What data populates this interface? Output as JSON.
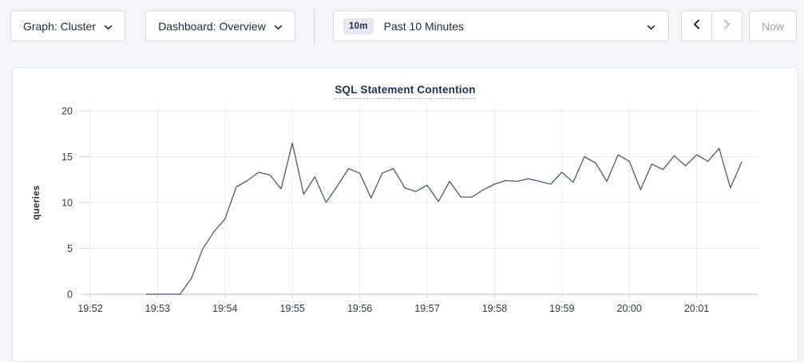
{
  "toolbar": {
    "graph_dropdown": {
      "label": "Graph: Cluster"
    },
    "dashboard_dropdown": {
      "label": "Dashboard: Overview"
    },
    "time_range_dropdown": {
      "badge": "10m",
      "label": "Past 10 Minutes"
    },
    "prev_button": {
      "enabled": true
    },
    "next_button": {
      "enabled": false
    },
    "now_button": {
      "label": "Now",
      "enabled": false
    }
  },
  "chart": {
    "title": "SQL Statement Contention",
    "ylabel": "queries"
  },
  "chart_data": {
    "type": "line",
    "title": "SQL Statement Contention",
    "xlabel": "",
    "ylabel": "queries",
    "ylim": [
      0,
      20
    ],
    "y_ticks": [
      0,
      5,
      10,
      15,
      20
    ],
    "x_ticks": [
      "19:52",
      "19:53",
      "19:54",
      "19:55",
      "19:56",
      "19:57",
      "19:58",
      "19:59",
      "20:00",
      "20:01"
    ],
    "grid": true,
    "legend": "none",
    "line_color": "#4c5a74",
    "series": [
      {
        "name": "queries",
        "start_time": "19:52:50",
        "start_offset_seconds": 50,
        "interval_seconds": 10,
        "values": [
          0,
          0,
          0,
          0,
          1.7,
          4.9,
          6.8,
          8.2,
          11.7,
          12.4,
          13.3,
          13.0,
          11.5,
          16.5,
          10.9,
          12.8,
          10.0,
          11.8,
          13.7,
          13.2,
          10.5,
          13.2,
          13.7,
          11.6,
          11.2,
          11.9,
          10.1,
          12.3,
          10.6,
          10.6,
          11.4,
          12.0,
          12.4,
          12.3,
          12.6,
          12.3,
          12.0,
          13.3,
          12.2,
          15.0,
          14.3,
          12.3,
          15.2,
          14.5,
          11.4,
          14.2,
          13.6,
          15.1,
          14.0,
          15.2,
          14.5,
          15.9,
          11.6,
          14.4
        ]
      }
    ]
  },
  "colors": {
    "page_bg": "#f4f5f9",
    "card_bg": "#ffffff",
    "button_border": "#d6dae3",
    "text_dark": "#1f2940",
    "disabled": "#b6bdca",
    "gridline": "#ebebee",
    "axis_line": "#d2d3d8",
    "series_line": "#4c5a74",
    "title": "#1e3050",
    "badge_bg": "#e4e8f0"
  }
}
